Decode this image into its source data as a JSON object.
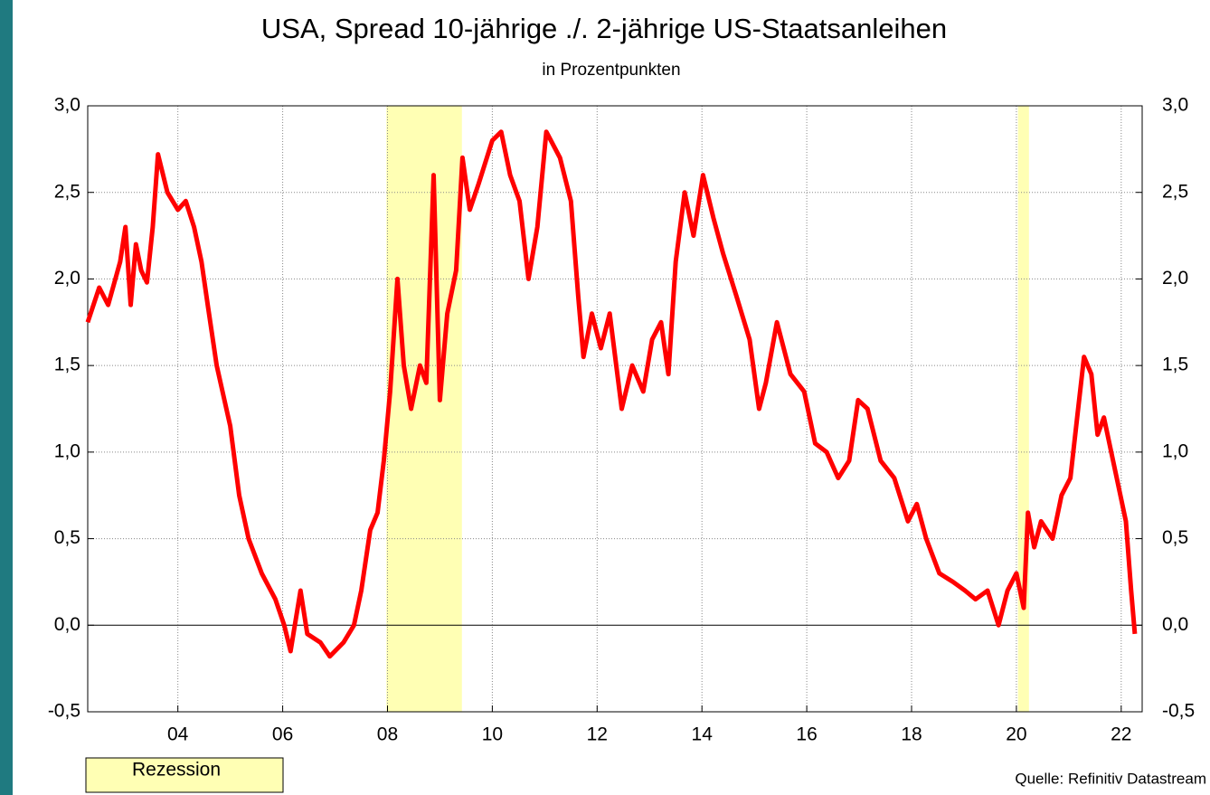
{
  "chart_data": {
    "type": "line",
    "title": "USA, Spread 10-jährige ./. 2-jährige US-Staatsanleihen",
    "subtitle": "in Prozentpunkten",
    "source": "Quelle: Refinitiv Datastream",
    "color": "#ff0000",
    "grid": true,
    "recession": {
      "label": "Rezession",
      "color": "#ffffb4",
      "periods": [
        [
          2007.98,
          2009.42
        ],
        [
          2020.03,
          2020.24
        ]
      ]
    },
    "xlim": [
      2002.28,
      2022.4
    ],
    "xticks": [
      {
        "value": 2004,
        "label": "04"
      },
      {
        "value": 2006,
        "label": "06"
      },
      {
        "value": 2008,
        "label": "08"
      },
      {
        "value": 2010,
        "label": "10"
      },
      {
        "value": 2012,
        "label": "12"
      },
      {
        "value": 2014,
        "label": "14"
      },
      {
        "value": 2016,
        "label": "16"
      },
      {
        "value": 2018,
        "label": "18"
      },
      {
        "value": 2020,
        "label": "20"
      },
      {
        "value": 2022,
        "label": "22"
      }
    ],
    "ylim": [
      -0.5,
      3.0
    ],
    "yticks": [
      {
        "value": -0.5,
        "label": "-0,5"
      },
      {
        "value": 0,
        "label": "0,0"
      },
      {
        "value": 0.5,
        "label": "0,5"
      },
      {
        "value": 1.0,
        "label": "1,0"
      },
      {
        "value": 1.5,
        "label": "1,5"
      },
      {
        "value": 2.0,
        "label": "2,0"
      },
      {
        "value": 2.5,
        "label": "2,5"
      },
      {
        "value": 3.0,
        "label": "3,0"
      }
    ],
    "x": [
      2002.28,
      2002.5,
      2002.67,
      2002.9,
      2003.0,
      2003.1,
      2003.2,
      2003.3,
      2003.41,
      2003.52,
      2003.62,
      2003.8,
      2004.0,
      2004.15,
      2004.31,
      2004.45,
      2004.57,
      2004.74,
      2005.0,
      2005.17,
      2005.35,
      2005.6,
      2005.86,
      2006.03,
      2006.15,
      2006.34,
      2006.47,
      2006.72,
      2006.9,
      2007.16,
      2007.36,
      2007.5,
      2007.67,
      2007.81,
      2007.93,
      2008.05,
      2008.19,
      2008.31,
      2008.45,
      2008.62,
      2008.74,
      2008.88,
      2009.0,
      2009.14,
      2009.31,
      2009.43,
      2009.57,
      2009.74,
      2010.0,
      2010.17,
      2010.34,
      2010.52,
      2010.69,
      2010.86,
      2011.03,
      2011.29,
      2011.5,
      2011.64,
      2011.74,
      2011.9,
      2012.07,
      2012.24,
      2012.47,
      2012.67,
      2012.88,
      2013.05,
      2013.22,
      2013.36,
      2013.5,
      2013.67,
      2013.84,
      2014.02,
      2014.22,
      2014.4,
      2014.66,
      2014.91,
      2015.09,
      2015.22,
      2015.43,
      2015.69,
      2015.95,
      2016.16,
      2016.38,
      2016.6,
      2016.81,
      2016.98,
      2017.16,
      2017.41,
      2017.67,
      2017.93,
      2018.1,
      2018.28,
      2018.53,
      2018.79,
      2019.02,
      2019.22,
      2019.45,
      2019.66,
      2019.83,
      2020.0,
      2020.14,
      2020.22,
      2020.34,
      2020.47,
      2020.69,
      2020.86,
      2021.03,
      2021.16,
      2021.29,
      2021.43,
      2021.55,
      2021.67,
      2021.81,
      2021.95,
      2022.09,
      2022.19,
      2022.26
    ],
    "values": [
      1.75,
      1.95,
      1.85,
      2.1,
      2.3,
      1.85,
      2.2,
      2.05,
      1.98,
      2.3,
      2.72,
      2.5,
      2.4,
      2.45,
      2.3,
      2.1,
      1.85,
      1.5,
      1.15,
      0.75,
      0.5,
      0.3,
      0.15,
      0.0,
      -0.15,
      0.2,
      -0.05,
      -0.1,
      -0.18,
      -0.1,
      0.0,
      0.2,
      0.55,
      0.65,
      0.95,
      1.35,
      2.0,
      1.5,
      1.25,
      1.5,
      1.4,
      2.6,
      1.3,
      1.8,
      2.05,
      2.7,
      2.4,
      2.55,
      2.8,
      2.85,
      2.6,
      2.45,
      2.0,
      2.3,
      2.85,
      2.7,
      2.45,
      1.9,
      1.55,
      1.8,
      1.6,
      1.8,
      1.25,
      1.5,
      1.35,
      1.65,
      1.75,
      1.45,
      2.1,
      2.5,
      2.25,
      2.6,
      2.35,
      2.15,
      1.9,
      1.65,
      1.25,
      1.4,
      1.75,
      1.45,
      1.35,
      1.05,
      1.0,
      0.85,
      0.95,
      1.3,
      1.25,
      0.95,
      0.85,
      0.6,
      0.7,
      0.5,
      0.3,
      0.25,
      0.2,
      0.15,
      0.2,
      0.0,
      0.2,
      0.3,
      0.1,
      0.65,
      0.45,
      0.6,
      0.5,
      0.75,
      0.85,
      1.2,
      1.55,
      1.45,
      1.1,
      1.2,
      1.0,
      0.8,
      0.6,
      0.2,
      -0.05
    ]
  }
}
